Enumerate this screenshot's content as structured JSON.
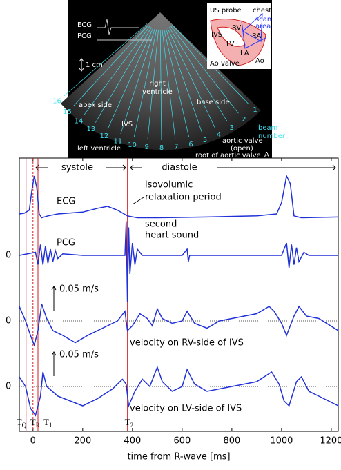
{
  "ultrasound": {
    "ecg": "ECG",
    "pcg": "PCG",
    "scale": "1 cm",
    "right_ventricle": [
      "right",
      "ventricle"
    ],
    "base_side": "base side",
    "apex_side": "apex side",
    "ivs": "IVS",
    "left_ventricle": "left ventricle",
    "aortic_valve": [
      "aortic valve",
      "(open)"
    ],
    "root": "root of aortic valve",
    "panel": "A",
    "beam_label": [
      "beam",
      "number"
    ],
    "beams": [
      "16",
      "15",
      "14",
      "13",
      "12",
      "11",
      "10",
      "9",
      "8",
      "7",
      "6",
      "5",
      "4",
      "3",
      "2",
      "1"
    ],
    "inset": {
      "probe": "US probe",
      "chest": "chest",
      "scan": [
        "scan",
        "area"
      ],
      "rv": "RV",
      "ra": "RA",
      "ivs": "IVS",
      "lv": "LV",
      "la": "LA",
      "valve": "Ao valve",
      "ao": "Ao"
    }
  },
  "chart_data": {
    "type": "line",
    "xlabel": "time from R-wave [ms]",
    "xlim": [
      -55,
      1228
    ],
    "xticks": [
      0,
      200,
      400,
      600,
      800,
      1000,
      1200
    ],
    "phases": {
      "systole": "systole",
      "diastole": "diastole"
    },
    "annotations": {
      "ivr": [
        "isovolumic",
        "relaxation period"
      ],
      "s2": [
        "second",
        "heart sound"
      ]
    },
    "markers": [
      {
        "x": -28,
        "label": "T",
        "sub": "Q"
      },
      {
        "x": 0,
        "label": "T",
        "sub": "R"
      },
      {
        "x": 20,
        "label": "T",
        "sub": "1"
      },
      {
        "x": 380,
        "label": "T",
        "sub": "2"
      }
    ],
    "color": "#2030d8",
    "marker_color": "#d02020",
    "series": [
      {
        "name": "ECG",
        "x": [
          -55,
          -35,
          -15,
          -5,
          5,
          15,
          25,
          35,
          60,
          100,
          200,
          260,
          300,
          340,
          380,
          420,
          500,
          700,
          900,
          980,
          1000,
          1020,
          1035,
          1050,
          1080,
          1228
        ],
        "values": [
          0,
          0.02,
          0.1,
          0.6,
          1.0,
          0.7,
          0,
          -0.1,
          -0.05,
          0,
          0.05,
          0.15,
          0.2,
          0.1,
          -0.05,
          -0.1,
          -0.1,
          -0.08,
          -0.05,
          0,
          0.3,
          1.0,
          0.8,
          -0.05,
          -0.1,
          -0.08
        ]
      },
      {
        "name": "PCG",
        "yticks": [
          0
        ],
        "x": [
          -55,
          10,
          20,
          30,
          40,
          50,
          60,
          70,
          80,
          90,
          100,
          120,
          200,
          370,
          375,
          380,
          385,
          390,
          400,
          410,
          420,
          440,
          600,
          620,
          625,
          630,
          1000,
          1020,
          1030,
          1040,
          1050,
          1060,
          1070,
          1090,
          1110,
          1228
        ],
        "values": [
          0,
          0.1,
          -0.3,
          0.35,
          -0.3,
          0.3,
          -0.25,
          0.2,
          -0.2,
          0.15,
          -0.1,
          0.05,
          0,
          0,
          1.1,
          -1.5,
          0.9,
          -0.6,
          0.4,
          -0.3,
          0.2,
          0,
          0,
          0.2,
          -0.2,
          0,
          0,
          0.4,
          -0.4,
          0.35,
          -0.3,
          0.25,
          -0.2,
          0.1,
          0,
          0
        ]
      },
      {
        "name": "velocity on RV-side of IVS",
        "yticks": [
          0
        ],
        "scale_bar": {
          "value": 0.05,
          "label": "0.05 m/s"
        },
        "x": [
          -55,
          -30,
          -10,
          5,
          20,
          35,
          55,
          80,
          120,
          170,
          220,
          300,
          340,
          370,
          380,
          400,
          430,
          460,
          480,
          500,
          520,
          560,
          600,
          620,
          650,
          700,
          750,
          800,
          850,
          900,
          950,
          970,
          1000,
          1020,
          1050,
          1070,
          1100,
          1150,
          1228
        ],
        "values": [
          0.03,
          0,
          -0.03,
          -0.05,
          -0.02,
          0.035,
          0.005,
          -0.02,
          -0.03,
          -0.045,
          -0.03,
          -0.01,
          0,
          0.02,
          -0.02,
          -0.01,
          0.015,
          0.005,
          -0.01,
          0.025,
          0.005,
          -0.005,
          0,
          0.02,
          -0.005,
          -0.015,
          0,
          0.005,
          0.01,
          0.015,
          0.03,
          0.02,
          -0.005,
          -0.03,
          0.01,
          0.03,
          0.01,
          0.005,
          -0.02
        ]
      },
      {
        "name": "velocity on LV-side of IVS",
        "yticks": [
          0
        ],
        "scale_bar": {
          "value": 0.05,
          "label": "0.05 m/s"
        },
        "x": [
          -55,
          -30,
          -10,
          10,
          30,
          40,
          55,
          100,
          150,
          200,
          260,
          320,
          360,
          375,
          385,
          410,
          440,
          470,
          500,
          520,
          560,
          600,
          620,
          650,
          700,
          800,
          900,
          960,
          990,
          1010,
          1030,
          1060,
          1080,
          1110,
          1150,
          1228
        ],
        "values": [
          0.02,
          0,
          -0.045,
          -0.06,
          -0.02,
          0.03,
          0,
          -0.02,
          -0.03,
          -0.04,
          -0.025,
          -0.005,
          0.015,
          0.005,
          -0.04,
          -0.01,
          0.015,
          0,
          0.04,
          0.01,
          -0.01,
          0,
          0.035,
          0.005,
          -0.01,
          0,
          0.01,
          0.03,
          0.005,
          -0.03,
          -0.04,
          0.01,
          0.02,
          -0.01,
          -0.02,
          -0.04
        ]
      }
    ]
  }
}
